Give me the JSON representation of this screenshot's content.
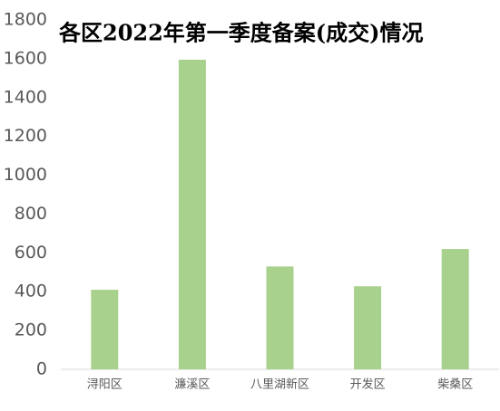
{
  "chart_data": {
    "type": "bar",
    "title": "各区2022年第一季度备案(成交)情况",
    "categories": [
      "浔阳区",
      "濂溪区",
      "八里湖新区",
      "开发区",
      "柴桑区"
    ],
    "values": [
      410,
      1595,
      530,
      428,
      620
    ],
    "color": "#a9d18e",
    "ylim": [
      0,
      1800
    ],
    "yticks": [
      0,
      200,
      400,
      600,
      800,
      1000,
      1200,
      1400,
      1600,
      1800
    ],
    "grid": false
  }
}
